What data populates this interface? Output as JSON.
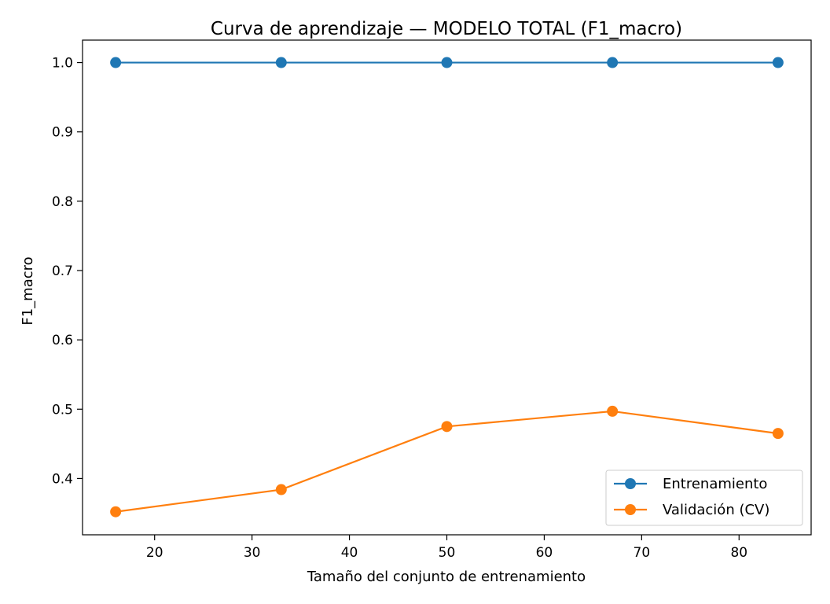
{
  "chart_data": {
    "type": "line",
    "title": "Curva de aprendizaje — MODELO TOTAL (F1_macro)",
    "xlabel": "Tamaño del conjunto de entrenamiento",
    "ylabel": "F1_macro",
    "xlim": [
      12.6,
      87.4
    ],
    "ylim": [
      0.3188,
      1.0324
    ],
    "x_ticks": [
      20,
      30,
      40,
      50,
      60,
      70,
      80
    ],
    "y_ticks": [
      0.4,
      0.5,
      0.6,
      0.7,
      0.8,
      0.9,
      1.0
    ],
    "y_tick_labels": [
      "0.4",
      "0.5",
      "0.6",
      "0.7",
      "0.8",
      "0.9",
      "1.0"
    ],
    "grid": false,
    "legend_position": "lower-right",
    "x": [
      16,
      33,
      50,
      67,
      84
    ],
    "series": [
      {
        "name": "Entrenamiento",
        "values": [
          1.0,
          1.0,
          1.0,
          1.0,
          1.0
        ],
        "color": "#1f77b4",
        "marker": "circle"
      },
      {
        "name": "Validación (CV)",
        "values": [
          0.352,
          0.384,
          0.475,
          0.497,
          0.465
        ],
        "color": "#ff7f0e",
        "marker": "circle"
      }
    ]
  }
}
